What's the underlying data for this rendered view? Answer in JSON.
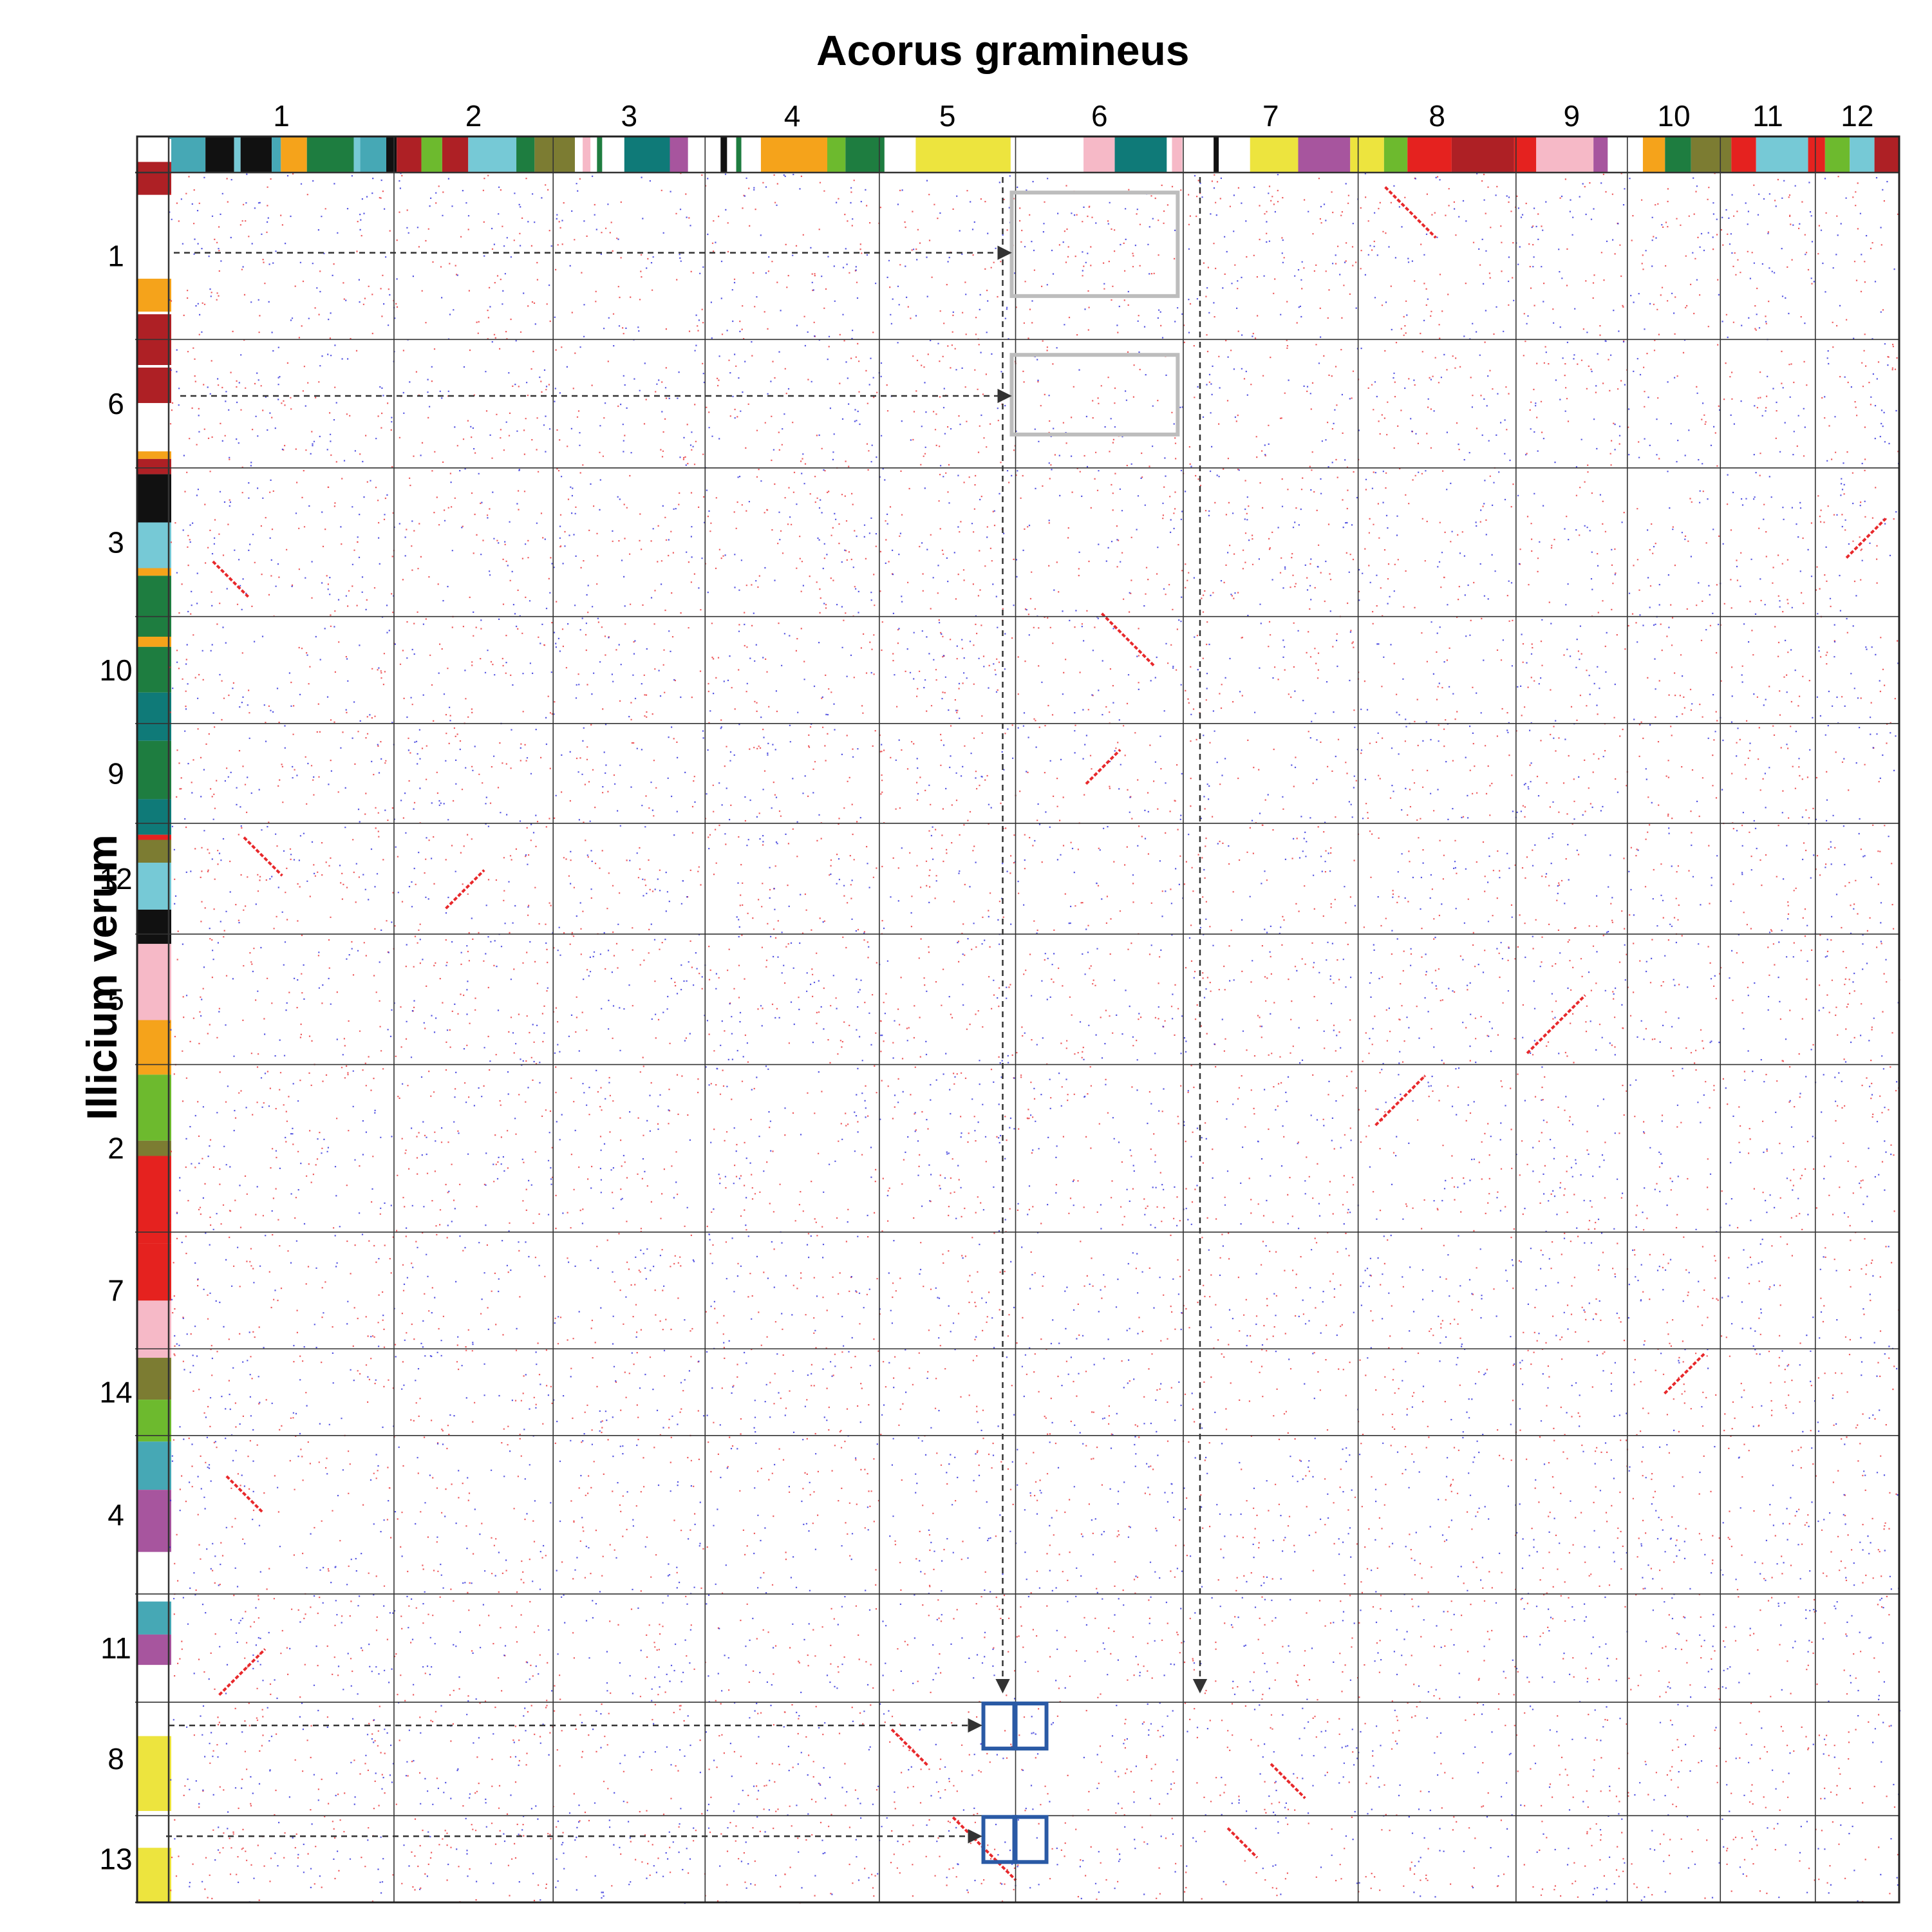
{
  "figure": {
    "x_species": "Acorus gramineus",
    "y_species": "Illicium verum"
  },
  "chart_data": {
    "type": "dotplot",
    "x_axis": {
      "label": "Acorus gramineus",
      "chromosomes": [
        "1",
        "2",
        "3",
        "4",
        "5",
        "6",
        "7",
        "8",
        "9",
        "10",
        "11",
        "12"
      ],
      "relative_lengths": [
        344,
        243,
        232,
        266,
        208,
        256,
        267,
        241,
        170,
        142,
        145,
        128
      ]
    },
    "y_axis": {
      "label": "Illicium verum",
      "chromosomes": [
        "1",
        "6",
        "3",
        "10",
        "9",
        "12",
        "5",
        "2",
        "7",
        "14",
        "4",
        "11",
        "8",
        "13"
      ],
      "relative_lengths": [
        256,
        197,
        228,
        164,
        153,
        170,
        200,
        257,
        179,
        133,
        243,
        166,
        174,
        133
      ]
    },
    "dot_colors": {
      "red": "#e8282b",
      "blue": "#2020d8"
    },
    "ancestral_palette": {
      "dark_red": "#ae2025",
      "orange": "#f5a31b",
      "black": "#111111",
      "light_cyan": "#76c9d6",
      "teal_blue": "#46a8b5",
      "dark_green": "#1e7d40",
      "dark_teal": "#0f7a78",
      "olive": "#7c7c32",
      "light_green": "#6dba2e",
      "red": "#e5221f",
      "pink": "#f6b9c7",
      "purple": "#a7559e",
      "yellow": "#ede43e"
    },
    "x_color_bar": [
      [
        "white",
        0,
        26
      ],
      [
        "teal_blue",
        26,
        54
      ],
      [
        "black",
        54,
        76
      ],
      [
        "light_cyan",
        76,
        81
      ],
      [
        "black",
        81,
        105
      ],
      [
        "teal_blue",
        105,
        112
      ],
      [
        "orange",
        112,
        132
      ],
      [
        "dark_green",
        132,
        168
      ],
      [
        "light_cyan",
        168,
        173
      ],
      [
        "teal_blue",
        173,
        193
      ],
      [
        "black",
        193,
        201
      ],
      [
        "dark_red",
        201,
        220
      ],
      [
        "light_green",
        220,
        236
      ],
      [
        "dark_red",
        236,
        256
      ],
      [
        "light_cyan",
        256,
        293
      ],
      [
        "dark_green",
        293,
        307
      ],
      [
        "olive",
        307,
        338
      ],
      [
        "white",
        338,
        344
      ],
      [
        "pink",
        344,
        350
      ],
      [
        "white",
        350,
        355
      ],
      [
        "dark_green",
        355,
        359
      ],
      [
        "white",
        359,
        376
      ],
      [
        "dark_teal",
        376,
        411
      ],
      [
        "purple",
        411,
        425
      ],
      [
        "white",
        425,
        450
      ],
      [
        "black",
        450,
        455
      ],
      [
        "white",
        455,
        462
      ],
      [
        "dark_green",
        462,
        466
      ],
      [
        "white",
        466,
        481
      ],
      [
        "orange",
        481,
        532
      ],
      [
        "light_green",
        532,
        546
      ],
      [
        "dark_green",
        546,
        576
      ],
      [
        "white",
        576,
        600
      ],
      [
        "yellow",
        600,
        673
      ],
      [
        "white",
        673,
        729
      ],
      [
        "pink",
        729,
        753
      ],
      [
        "dark_teal",
        753,
        793
      ],
      [
        "white",
        793,
        797
      ],
      [
        "pink",
        797,
        805
      ],
      [
        "white",
        805,
        829
      ],
      [
        "black",
        829,
        833
      ],
      [
        "white",
        833,
        857
      ],
      [
        "yellow",
        857,
        894
      ],
      [
        "purple",
        894,
        934
      ],
      [
        "yellow",
        934,
        960
      ],
      [
        "light_green",
        960,
        978
      ],
      [
        "red",
        978,
        1012
      ],
      [
        "dark_red",
        1012,
        1060
      ],
      [
        "red",
        1060,
        1077
      ],
      [
        "pink",
        1077,
        1121
      ],
      [
        "purple",
        1121,
        1132
      ],
      [
        "white",
        1132,
        1159
      ],
      [
        "orange",
        1159,
        1176
      ],
      [
        "dark_green",
        1176,
        1196
      ],
      [
        "olive",
        1196,
        1227
      ],
      [
        "red",
        1227,
        1246
      ],
      [
        "light_cyan",
        1246,
        1286
      ],
      [
        "red",
        1286,
        1299
      ],
      [
        "light_green",
        1299,
        1318
      ],
      [
        "light_cyan",
        1318,
        1337
      ],
      [
        "dark_red",
        1337,
        1356
      ]
    ],
    "y_color_bar": [
      [
        "white",
        0,
        18
      ],
      [
        "dark_red",
        18,
        44
      ],
      [
        "white",
        44,
        110
      ],
      [
        "orange",
        110,
        136
      ],
      [
        "white",
        136,
        138
      ],
      [
        "dark_red",
        138,
        178
      ],
      [
        "white",
        178,
        180
      ],
      [
        "dark_red",
        180,
        208
      ],
      [
        "white",
        208,
        246
      ],
      [
        "orange",
        246,
        252
      ],
      [
        "dark_red",
        252,
        264
      ],
      [
        "black",
        264,
        302
      ],
      [
        "light_cyan",
        302,
        338
      ],
      [
        "orange",
        338,
        344
      ],
      [
        "dark_green",
        344,
        392
      ],
      [
        "orange",
        392,
        400
      ],
      [
        "dark_green",
        400,
        436
      ],
      [
        "dark_teal",
        436,
        474
      ],
      [
        "dark_green",
        474,
        520
      ],
      [
        "dark_teal",
        520,
        548
      ],
      [
        "red",
        548,
        552
      ],
      [
        "olive",
        552,
        570
      ],
      [
        "light_cyan",
        570,
        607
      ],
      [
        "black",
        607,
        634
      ],
      [
        "pink",
        634,
        694
      ],
      [
        "orange",
        694,
        737
      ],
      [
        "light_green",
        737,
        789
      ],
      [
        "olive",
        789,
        801
      ],
      [
        "red",
        801,
        870
      ],
      [
        "red",
        870,
        915
      ],
      [
        "pink",
        915,
        960
      ],
      [
        "olive",
        960,
        993
      ],
      [
        "light_green",
        993,
        1026
      ],
      [
        "teal_blue",
        1026,
        1064
      ],
      [
        "purple",
        1064,
        1113
      ],
      [
        "white",
        1113,
        1152
      ],
      [
        "teal_blue",
        1152,
        1178
      ],
      [
        "purple",
        1178,
        1202
      ],
      [
        "white",
        1202,
        1258
      ],
      [
        "yellow",
        1258,
        1317
      ],
      [
        "white",
        1317,
        1346
      ],
      [
        "yellow",
        1346,
        1389
      ]
    ],
    "highlights": {
      "gray_boxes": [
        {
          "x_chr": "6",
          "y_chr": "1"
        },
        {
          "x_chr": "6",
          "y_chr": "6"
        }
      ],
      "blue_boxes": [
        {
          "x_chr": "5",
          "y_chr": "8"
        },
        {
          "x_chr": "6",
          "y_chr": "8"
        },
        {
          "x_chr": "5",
          "y_chr": "13"
        },
        {
          "x_chr": "6",
          "y_chr": "13"
        }
      ],
      "arrows": [
        {
          "from": "y-chr 1",
          "to": "x-chr 6 / y-chr 1 box"
        },
        {
          "from": "y-chr 6",
          "to": "x-chr 6 / y-chr 6 box"
        },
        {
          "from": "y-chr 8",
          "to": "x-chr 5 / y-chr 8 box"
        },
        {
          "from": "y-chr 13",
          "to": "x-chr 5 / y-chr 13 box"
        },
        {
          "from": "x-chr 5 (end)",
          "to": "y-chr 11 lower edge"
        },
        {
          "from": "x-chr 7 (start)",
          "to": "y-chr 11 lower edge"
        }
      ]
    },
    "synteny_signal": {
      "description_blocks": [
        {
          "x_chr": "1",
          "y_chr": "3"
        },
        {
          "x_chr": "1",
          "y_chr": "12"
        },
        {
          "x_chr": "1",
          "y_chr": "4"
        },
        {
          "x_chr": "1",
          "y_chr": "11"
        },
        {
          "x_chr": "2",
          "y_chr": "12"
        },
        {
          "x_chr": "6",
          "y_chr": "10"
        },
        {
          "x_chr": "6",
          "y_chr": "9"
        },
        {
          "x_chr": "8",
          "y_chr": "1"
        },
        {
          "x_chr": "8",
          "y_chr": "2"
        },
        {
          "x_chr": "9",
          "y_chr": "5"
        },
        {
          "x_chr": "10",
          "y_chr": "14"
        },
        {
          "x_chr": "12",
          "y_chr": "3"
        },
        {
          "x_chr": "5",
          "y_chr": "8"
        },
        {
          "x_chr": "7",
          "y_chr": "8"
        },
        {
          "x_chr": "5",
          "y_chr": "13"
        },
        {
          "x_chr": "7",
          "y_chr": "13"
        }
      ]
    }
  }
}
